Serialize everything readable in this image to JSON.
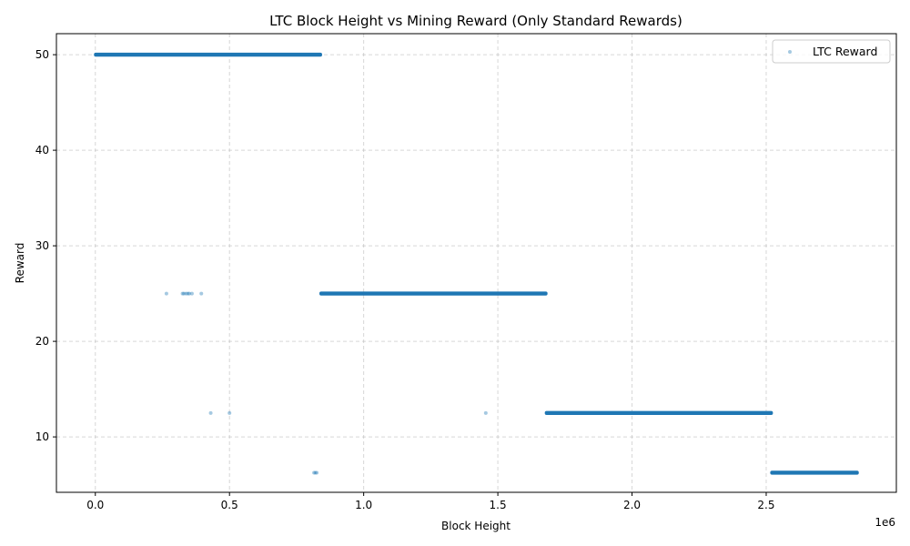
{
  "chart_data": {
    "type": "scatter",
    "title": "LTC Block Height vs Mining Reward (Only Standard Rewards)",
    "xlabel": "Block Height",
    "ylabel": "Reward",
    "x_offset_text": "1e6",
    "xlim": [
      -0.145,
      2.985
    ],
    "ylim": [
      4.2,
      52.2
    ],
    "x_ticks": [
      0,
      0.5,
      1.0,
      1.5,
      2.0,
      2.5
    ],
    "x_tick_labels": [
      "0.0",
      "0.5",
      "1.0",
      "1.5",
      "2.0",
      "2.5"
    ],
    "y_ticks": [
      10,
      20,
      30,
      40,
      50
    ],
    "y_tick_labels": [
      "10",
      "20",
      "30",
      "40",
      "50"
    ],
    "grid": true,
    "legend_position": "top-right",
    "series": [
      {
        "name": "LTC Reward",
        "color": "#1f77b4",
        "dense_segments": [
          {
            "x_start": 0.0,
            "x_end": 0.84,
            "y": 50
          },
          {
            "x_start": 0.84,
            "x_end": 1.68,
            "y": 25
          },
          {
            "x_start": 1.68,
            "x_end": 2.52,
            "y": 12.5
          },
          {
            "x_start": 2.52,
            "x_end": 2.84,
            "y": 6.25
          }
        ],
        "points": [
          {
            "x": 0.265,
            "y": 25
          },
          {
            "x": 0.325,
            "y": 25
          },
          {
            "x": 0.33,
            "y": 25
          },
          {
            "x": 0.338,
            "y": 25
          },
          {
            "x": 0.345,
            "y": 25
          },
          {
            "x": 0.35,
            "y": 25
          },
          {
            "x": 0.36,
            "y": 25
          },
          {
            "x": 0.395,
            "y": 25
          },
          {
            "x": 0.43,
            "y": 12.5
          },
          {
            "x": 0.5,
            "y": 12.5
          },
          {
            "x": 1.455,
            "y": 12.5
          },
          {
            "x": 0.815,
            "y": 6.25
          },
          {
            "x": 0.82,
            "y": 6.25
          },
          {
            "x": 0.825,
            "y": 6.25
          }
        ]
      }
    ]
  }
}
